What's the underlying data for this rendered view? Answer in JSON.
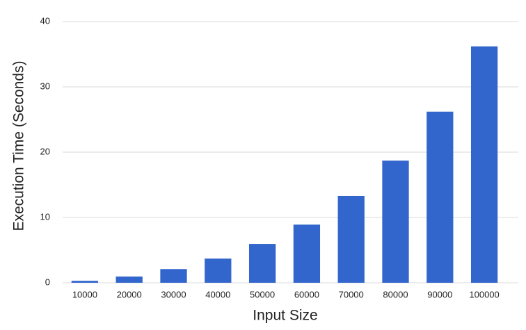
{
  "chart_data": {
    "type": "bar",
    "x_label": "Input Size",
    "y_label": "Execution Time (Seconds)",
    "categories": [
      "10000",
      "20000",
      "30000",
      "40000",
      "50000",
      "60000",
      "70000",
      "80000",
      "90000",
      "100000"
    ],
    "values": [
      0.3,
      0.95,
      2.1,
      3.7,
      5.95,
      8.9,
      13.3,
      18.7,
      26.2,
      36.2
    ],
    "color": "#3366cc",
    "ylim": [
      0,
      40
    ],
    "yticks": [
      0,
      10,
      20,
      30,
      40
    ],
    "grid": true
  }
}
